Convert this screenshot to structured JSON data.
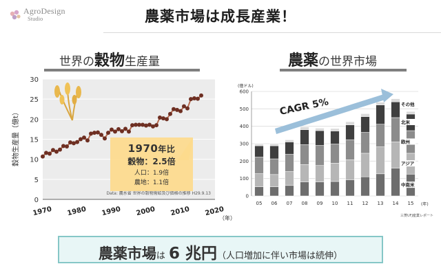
{
  "logo": {
    "name": "AgroDesign",
    "sub": "Studio"
  },
  "title": "農薬市場は成長産業！",
  "left_section": {
    "pre": "世界の",
    "emph": "穀物",
    "post": "生産量"
  },
  "right_section": {
    "emph": "農薬",
    "post": "の世界市場"
  },
  "callout": {
    "heading": "1970",
    "heading_suffix": "年比",
    "main": "穀物：2.5倍",
    "line1": "人口：1.9倍",
    "line2": "農地：1.1倍"
  },
  "cagr_label": "CAGR 5%",
  "bottom": {
    "strong": "農薬市場",
    "particle": "は",
    "number": "6 兆円",
    "note": "（人口増加に伴い市場は続伸）"
  },
  "colors": {
    "grain_line": "#b56a4e",
    "grain_marker": "#6e2f22",
    "callout_bg": "#fdda8c",
    "arrow": "#9bbfda",
    "accent_box": "#86c7c7",
    "seg_dark": "#6d6d6d",
    "seg_light": "#b6b6b6",
    "seg_mid": "#8c8c8c",
    "seg_top": "#3f3f3f"
  },
  "chart_data": [
    {
      "type": "line",
      "ylabel": "穀物生産量（億t）",
      "xlabel": "（年）",
      "ylim": [
        0,
        30
      ],
      "xlim": [
        1970,
        2020
      ],
      "x_ticks": [
        "1970",
        "1980",
        "1990",
        "2000",
        "2010",
        "2020"
      ],
      "y_ticks": [
        "0",
        "5",
        "10",
        "15",
        "20",
        "25",
        "30"
      ],
      "source": "Data: 農水省 世界の穀物需給及び価格の推移 H29.9.13",
      "x": [
        1970,
        1971,
        1972,
        1973,
        1974,
        1975,
        1976,
        1977,
        1978,
        1979,
        1980,
        1981,
        1982,
        1983,
        1984,
        1985,
        1986,
        1987,
        1988,
        1989,
        1990,
        1991,
        1992,
        1993,
        1994,
        1995,
        1996,
        1997,
        1998,
        1999,
        2000,
        2001,
        2002,
        2003,
        2004,
        2005,
        2006,
        2007,
        2008,
        2009,
        2010,
        2011,
        2012,
        2013,
        2014,
        2015,
        2016
      ],
      "values": [
        10.7,
        11.6,
        11.4,
        12.3,
        11.9,
        12.4,
        13.3,
        13.2,
        14.2,
        14.0,
        14.3,
        15.0,
        15.4,
        14.7,
        16.4,
        16.6,
        16.7,
        16.1,
        15.2,
        16.6,
        17.4,
        16.9,
        17.5,
        17.0,
        17.6,
        16.9,
        18.5,
        18.6,
        18.6,
        18.6,
        18.4,
        18.6,
        18.2,
        18.5,
        20.4,
        20.2,
        20.0,
        21.3,
        22.5,
        22.3,
        22.0,
        23.2,
        22.7,
        25.0,
        25.2,
        25.1,
        25.9
      ]
    },
    {
      "type": "bar",
      "stacked": true,
      "ylabel": "(億ドル)",
      "xlabel": "(年)",
      "ylim": [
        0,
        600
      ],
      "y_ticks": [
        "0",
        "100",
        "200",
        "300",
        "400",
        "500",
        "600"
      ],
      "source": "三菱UFJ産業レポート",
      "categories": [
        "05",
        "06",
        "07",
        "08",
        "09",
        "10",
        "11",
        "12",
        "13",
        "14",
        "15"
      ],
      "series": [
        {
          "name": "中南米",
          "values": [
            53,
            53,
            60,
            80,
            80,
            83,
            93,
            110,
            127,
            160,
            125
          ]
        },
        {
          "name": "アジア",
          "values": [
            75,
            70,
            80,
            100,
            95,
            105,
            115,
            135,
            155,
            150,
            120
          ]
        },
        {
          "name": "欧州",
          "values": [
            95,
            90,
            100,
            115,
            115,
            110,
            115,
            120,
            130,
            140,
            130
          ]
        },
        {
          "name": "北米",
          "values": [
            65,
            75,
            70,
            85,
            85,
            75,
            85,
            90,
            110,
            90,
            95
          ]
        },
        {
          "name": "その他",
          "values": [
            10,
            12,
            12,
            16,
            14,
            14,
            18,
            17,
            16,
            18,
            15
          ]
        }
      ]
    }
  ]
}
